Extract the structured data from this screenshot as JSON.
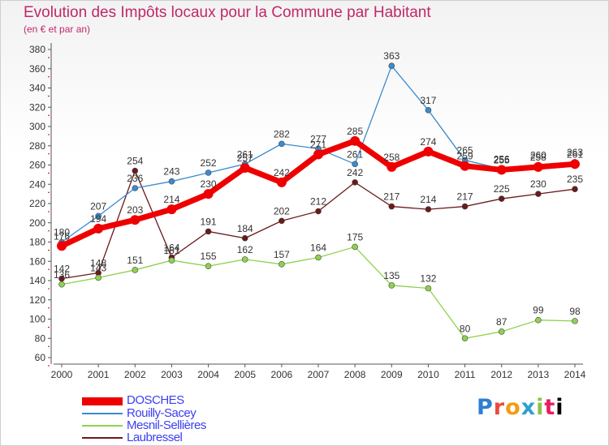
{
  "chart_data": {
    "type": "line",
    "title": "Evolution des Impôts locaux pour la Commune par Habitant",
    "subtitle": "(en € et par an)",
    "x": [
      "2000",
      "2001",
      "2002",
      "2003",
      "2004",
      "2005",
      "2006",
      "2007",
      "2008",
      "2009",
      "2010",
      "2011",
      "2012",
      "2013",
      "2014"
    ],
    "yticks": [
      60,
      80,
      100,
      120,
      140,
      160,
      180,
      200,
      220,
      240,
      260,
      280,
      300,
      320,
      340,
      360,
      380
    ],
    "ylim": [
      60,
      380
    ],
    "grid": false,
    "series": [
      {
        "name": "DOSCHES",
        "color": "#ee0000",
        "values": [
          176,
          194,
          203,
          214,
          230,
          257,
          242,
          271,
          285,
          258,
          274,
          259,
          255,
          258,
          261
        ]
      },
      {
        "name": "Rouilly-Sacey",
        "color": "#3a8bd0",
        "values": [
          180,
          207,
          236,
          243,
          252,
          261,
          282,
          277,
          261,
          363,
          317,
          265,
          256,
          260,
          263
        ]
      },
      {
        "name": "Mesnil-Sellières",
        "color": "#8fd14f",
        "values": [
          136,
          143,
          151,
          161,
          155,
          162,
          157,
          164,
          175,
          135,
          132,
          80,
          87,
          99,
          98
        ]
      },
      {
        "name": "Laubressel",
        "color": "#6b1a1a",
        "values": [
          142,
          148,
          254,
          164,
          191,
          184,
          202,
          212,
          242,
          217,
          214,
          217,
          225,
          230,
          235
        ]
      }
    ]
  },
  "logo_text": [
    "P",
    "r",
    "o",
    "x",
    "i",
    "t",
    "i"
  ]
}
